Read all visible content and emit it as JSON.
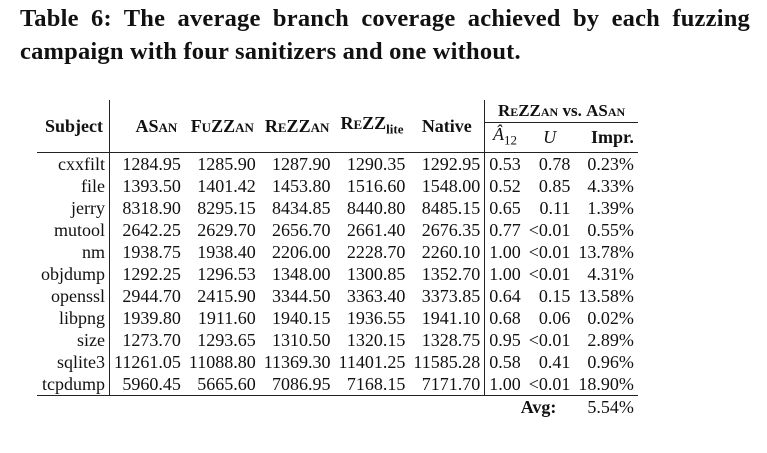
{
  "caption": "Table 6: The average branch coverage achieved by each fuzzing campaign with four sanitizers and one without.",
  "table": {
    "headers": {
      "subject": "Subject",
      "asan": "ASan",
      "fuzzan": "FuZZan",
      "rezzan": "ReZZan",
      "rezzlite_main": "ReZZ",
      "rezzlite_sub": "lite",
      "native": "Native",
      "group_left": "ReZZan",
      "group_mid": " vs. ",
      "group_right": "ASan",
      "a12_main": "Â",
      "a12_sub": "12",
      "u": "U",
      "impr": "Impr."
    },
    "rows": [
      {
        "subject": "cxxfilt",
        "asan": "1284.95",
        "fuzzan": "1285.90",
        "rezzan": "1287.90",
        "rezzlite": "1290.35",
        "native": "1292.95",
        "a12": "0.53",
        "u": "0.78",
        "impr": "0.23%"
      },
      {
        "subject": "file",
        "asan": "1393.50",
        "fuzzan": "1401.42",
        "rezzan": "1453.80",
        "rezzlite": "1516.60",
        "native": "1548.00",
        "a12": "0.52",
        "u": "0.85",
        "impr": "4.33%"
      },
      {
        "subject": "jerry",
        "asan": "8318.90",
        "fuzzan": "8295.15",
        "rezzan": "8434.85",
        "rezzlite": "8440.80",
        "native": "8485.15",
        "a12": "0.65",
        "u": "0.11",
        "impr": "1.39%"
      },
      {
        "subject": "mutool",
        "asan": "2642.25",
        "fuzzan": "2629.70",
        "rezzan": "2656.70",
        "rezzlite": "2661.40",
        "native": "2676.35",
        "a12": "0.77",
        "u": "<0.01",
        "impr": "0.55%"
      },
      {
        "subject": "nm",
        "asan": "1938.75",
        "fuzzan": "1938.40",
        "rezzan": "2206.00",
        "rezzlite": "2228.70",
        "native": "2260.10",
        "a12": "1.00",
        "u": "<0.01",
        "impr": "13.78%"
      },
      {
        "subject": "objdump",
        "asan": "1292.25",
        "fuzzan": "1296.53",
        "rezzan": "1348.00",
        "rezzlite": "1300.85",
        "native": "1352.70",
        "a12": "1.00",
        "u": "<0.01",
        "impr": "4.31%"
      },
      {
        "subject": "openssl",
        "asan": "2944.70",
        "fuzzan": "2415.90",
        "rezzan": "3344.50",
        "rezzlite": "3363.40",
        "native": "3373.85",
        "a12": "0.64",
        "u": "0.15",
        "impr": "13.58%"
      },
      {
        "subject": "libpng",
        "asan": "1939.80",
        "fuzzan": "1911.60",
        "rezzan": "1940.15",
        "rezzlite": "1936.55",
        "native": "1941.10",
        "a12": "0.68",
        "u": "0.06",
        "impr": "0.02%"
      },
      {
        "subject": "size",
        "asan": "1273.70",
        "fuzzan": "1293.65",
        "rezzan": "1310.50",
        "rezzlite": "1320.15",
        "native": "1328.75",
        "a12": "0.95",
        "u": "<0.01",
        "impr": "2.89%"
      },
      {
        "subject": "sqlite3",
        "asan": "11261.05",
        "fuzzan": "11088.80",
        "rezzan": "11369.30",
        "rezzlite": "11401.25",
        "native": "11585.28",
        "a12": "0.58",
        "u": "0.41",
        "impr": "0.96%"
      },
      {
        "subject": "tcpdump",
        "asan": "5960.45",
        "fuzzan": "5665.60",
        "rezzan": "7086.95",
        "rezzlite": "7168.15",
        "native": "7171.70",
        "a12": "1.00",
        "u": "<0.01",
        "impr": "18.90%"
      }
    ],
    "avg_label": "Avg:",
    "avg_value": "5.54%"
  }
}
